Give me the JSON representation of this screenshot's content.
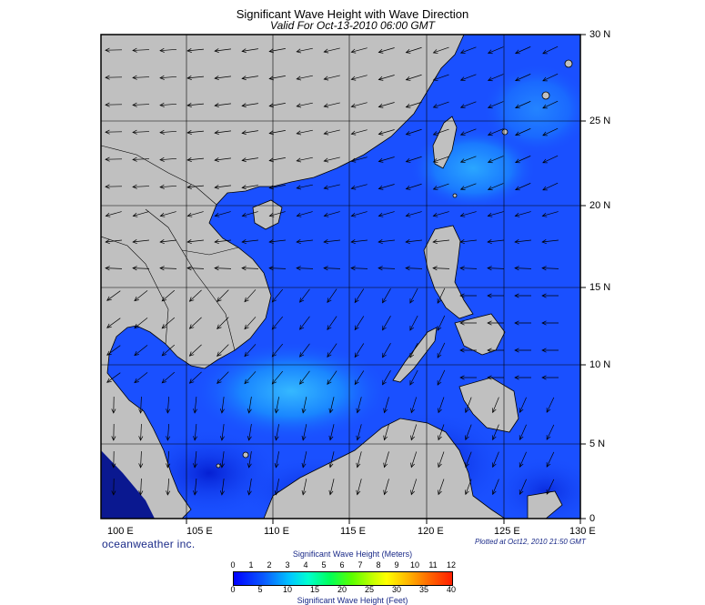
{
  "title": "Significant Wave Height with Wave Direction",
  "subtitle": "Valid For Oct-13-2010 06:00 GMT",
  "brand": "oceanweather inc.",
  "plotted": "Plotted at Oct12, 2010 21:50 GMT",
  "map": {
    "lon_range": [
      99,
      130
    ],
    "lat_range": [
      0,
      30
    ],
    "lon_ticks": [
      "100 E",
      "105 E",
      "110 E",
      "115 E",
      "120 E",
      "125 E",
      "130 E"
    ],
    "lat_ticks": [
      "30 N",
      "25 N",
      "20 N",
      "15 N",
      "10 N",
      "5 N",
      "0"
    ],
    "land_color": "#c0c0c0",
    "ocean_color": "#1a50ff",
    "grid": true
  },
  "colorbar": {
    "meters_title": "Significant Wave Height (Meters)",
    "feet_title": "Significant Wave Height (Feet)",
    "meters_ticks": [
      "0",
      "1",
      "2",
      "3",
      "4",
      "5",
      "6",
      "7",
      "8",
      "9",
      "10",
      "11",
      "12"
    ],
    "feet_ticks": [
      "0",
      "5",
      "10",
      "15",
      "20",
      "25",
      "30",
      "35",
      "40"
    ]
  }
}
